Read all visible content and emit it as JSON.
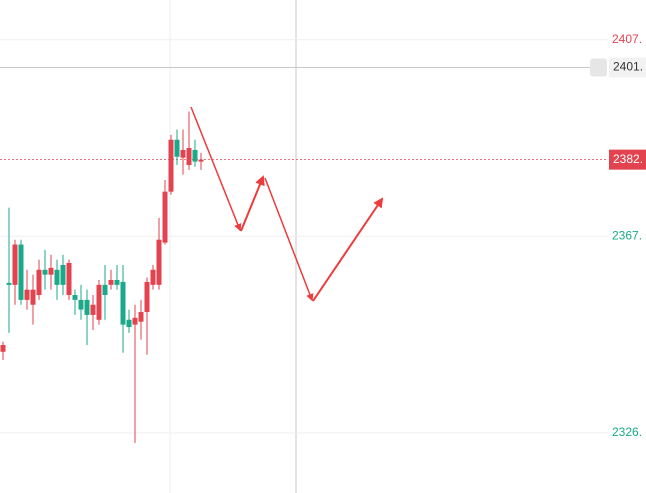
{
  "chart_data": {
    "type": "candlestick",
    "up_color": "#e2434f",
    "down_color": "#1ba98a",
    "ylim": [
      2314.1,
      2415.7
    ],
    "yticks": [
      {
        "value": 2407.5,
        "label": "2407."
      },
      {
        "value": 2367.0,
        "label": "2367."
      },
      {
        "value": 2326.5,
        "label": "2326."
      }
    ],
    "grid": true,
    "crosshair_price": {
      "value": 2401.8,
      "label": "2401."
    },
    "last_price": {
      "value": 2382.8,
      "label": "2382."
    },
    "open": [
      2343.2,
      2357.4,
      2357.0,
      2365.3,
      2353.9,
      2352.9,
      2354.9,
      2360.1,
      2359.1,
      2360.1,
      2361.1,
      2354.9,
      2354.9,
      2353.9,
      2353.9,
      2350.8,
      2349.8,
      2357.0,
      2357.0,
      2358.0,
      2357.6,
      2349.8,
      2348.8,
      2349.4,
      2351.4,
      2357.0,
      2357.0,
      2365.7,
      2376.2,
      2386.9,
      2383.2,
      2381.7,
      2384.8,
      2382.4
    ],
    "high": [
      2345.3,
      2372.9,
      2366.3,
      2366.3,
      2360.1,
      2359.1,
      2362.2,
      2364.2,
      2363.2,
      2362.2,
      2363.2,
      2362.2,
      2356.0,
      2357.0,
      2356.0,
      2354.9,
      2358.0,
      2361.1,
      2360.1,
      2361.1,
      2361.1,
      2351.9,
      2352.9,
      2353.9,
      2358.5,
      2361.1,
      2370.8,
      2378.6,
      2387.9,
      2389.0,
      2389.0,
      2392.7,
      2386.9,
      2384.2
    ],
    "low": [
      2341.5,
      2347.1,
      2352.9,
      2352.9,
      2351.9,
      2348.8,
      2353.9,
      2356.0,
      2356.0,
      2353.9,
      2354.9,
      2353.9,
      2350.8,
      2349.8,
      2344.6,
      2347.7,
      2348.8,
      2349.8,
      2356.0,
      2356.0,
      2343.0,
      2347.1,
      2324.4,
      2345.7,
      2342.6,
      2356.0,
      2356.0,
      2365.3,
      2375.6,
      2381.7,
      2379.7,
      2380.7,
      2381.3,
      2380.7
    ],
    "close": [
      2344.6,
      2357.0,
      2365.3,
      2353.9,
      2356.0,
      2356.0,
      2360.1,
      2359.1,
      2360.5,
      2357.0,
      2357.0,
      2361.5,
      2353.9,
      2351.9,
      2350.8,
      2352.9,
      2357.0,
      2354.9,
      2358.0,
      2357.0,
      2348.8,
      2348.3,
      2350.2,
      2351.4,
      2357.6,
      2360.1,
      2366.3,
      2376.2,
      2386.9,
      2383.4,
      2384.8,
      2385.2,
      2382.4,
      2382.8
    ]
  }
}
